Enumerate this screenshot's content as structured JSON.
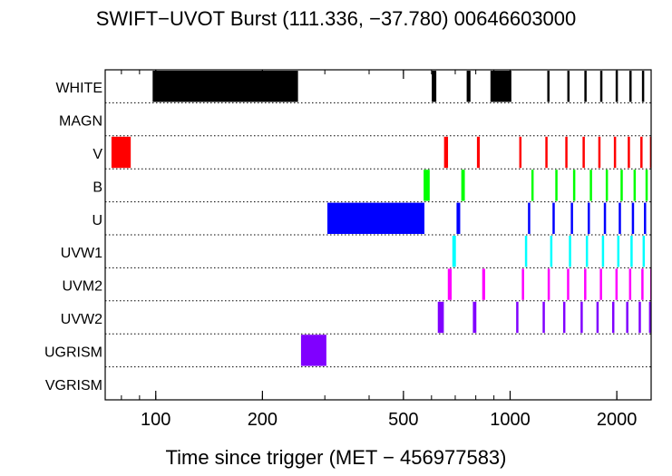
{
  "chart_data": {
    "type": "timeline",
    "title": "SWIFT−UVOT Burst (111.336, −37.780) 00646603000",
    "xlabel": "Time since trigger (MET − 456977583)",
    "ylabel": "",
    "x_scale": "log",
    "xlim": [
      72,
      2500
    ],
    "x_ticks": [
      100,
      200,
      500,
      1000,
      2000
    ],
    "x_tick_labels": [
      "100",
      "200",
      "500",
      "1000",
      "2000"
    ],
    "grid": "dotted horizontal separators",
    "filters": [
      "WHITE",
      "MAGN",
      "V",
      "B",
      "U",
      "UVW1",
      "UVM2",
      "UVW2",
      "UGRISM",
      "VGRISM"
    ],
    "series": [
      {
        "name": "WHITE",
        "color": "#000000",
        "intervals": [
          [
            98,
            252
          ],
          [
            601,
            619
          ],
          [
            754,
            773
          ],
          [
            880,
            1008
          ],
          [
            1273,
            1283
          ],
          [
            1450,
            1460
          ],
          [
            1620,
            1630
          ],
          [
            1795,
            1805
          ],
          [
            1985,
            1995
          ],
          [
            2170,
            2180
          ],
          [
            2355,
            2365
          ]
        ]
      },
      {
        "name": "MAGN",
        "color": "#000000",
        "intervals": []
      },
      {
        "name": "V",
        "color": "#ff0000",
        "intervals": [
          [
            75,
            85
          ],
          [
            651,
            668
          ],
          [
            806,
            821
          ],
          [
            1061,
            1072
          ],
          [
            1257,
            1267
          ],
          [
            1431,
            1441
          ],
          [
            1601,
            1611
          ],
          [
            1773,
            1783
          ],
          [
            1962,
            1972
          ],
          [
            2147,
            2157
          ],
          [
            2330,
            2340
          ],
          [
            2480,
            2490
          ]
        ]
      },
      {
        "name": "B",
        "color": "#00ff00",
        "intervals": [
          [
            570,
            593
          ],
          [
            728,
            745
          ],
          [
            1148,
            1158
          ],
          [
            1341,
            1351
          ],
          [
            1505,
            1515
          ],
          [
            1678,
            1688
          ],
          [
            1861,
            1871
          ],
          [
            2049,
            2059
          ],
          [
            2230,
            2240
          ],
          [
            2410,
            2420
          ]
        ]
      },
      {
        "name": "U",
        "color": "#0000ff",
        "intervals": [
          [
            305,
            573
          ],
          [
            706,
            723
          ],
          [
            1123,
            1133
          ],
          [
            1317,
            1327
          ],
          [
            1483,
            1493
          ],
          [
            1655,
            1665
          ],
          [
            1838,
            1848
          ],
          [
            2025,
            2035
          ],
          [
            2205,
            2215
          ],
          [
            2385,
            2395
          ]
        ]
      },
      {
        "name": "UVW1",
        "color": "#00ffff",
        "intervals": [
          [
            687,
            703
          ],
          [
            1101,
            1111
          ],
          [
            1297,
            1307
          ],
          [
            1465,
            1475
          ],
          [
            1635,
            1645
          ],
          [
            1815,
            1825
          ],
          [
            2005,
            2015
          ],
          [
            2185,
            2195
          ],
          [
            2365,
            2375
          ],
          [
            2495,
            2500
          ]
        ]
      },
      {
        "name": "UVM2",
        "color": "#ff00ff",
        "intervals": [
          [
            667,
            684
          ],
          [
            834,
            850
          ],
          [
            1079,
            1090
          ],
          [
            1276,
            1286
          ],
          [
            1447,
            1457
          ],
          [
            1617,
            1627
          ],
          [
            1791,
            1801
          ],
          [
            1982,
            1992
          ],
          [
            2165,
            2175
          ],
          [
            2345,
            2355
          ],
          [
            2485,
            2495
          ]
        ]
      },
      {
        "name": "UVW2",
        "color": "#8000ff",
        "intervals": [
          [
            625,
            650
          ],
          [
            785,
            803
          ],
          [
            1040,
            1052
          ],
          [
            1235,
            1245
          ],
          [
            1411,
            1421
          ],
          [
            1580,
            1590
          ],
          [
            1752,
            1762
          ],
          [
            1940,
            1950
          ],
          [
            2125,
            2135
          ],
          [
            2305,
            2315
          ],
          [
            2465,
            2475
          ]
        ]
      },
      {
        "name": "UGRISM",
        "color": "#8000ff",
        "intervals": [
          [
            257,
            303
          ]
        ]
      },
      {
        "name": "VGRISM",
        "color": "#8000ff",
        "intervals": []
      }
    ]
  }
}
